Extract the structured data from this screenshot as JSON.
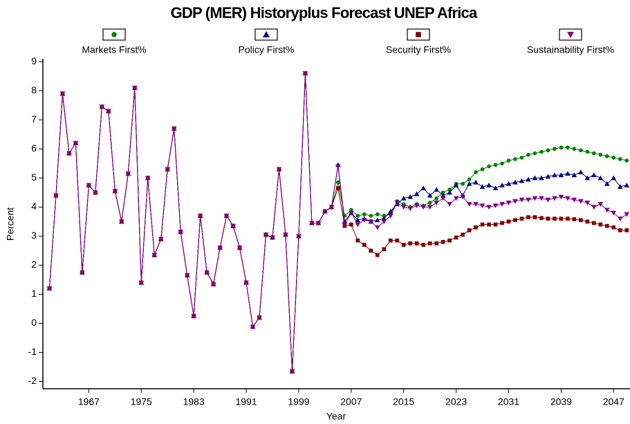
{
  "chart_data": {
    "type": "line",
    "title": "GDP (MER) Historyplus Forecast UNEP Africa",
    "x_label": "Year",
    "y_label": "Percent",
    "x": [
      1961,
      1962,
      1963,
      1964,
      1965,
      1966,
      1967,
      1968,
      1969,
      1970,
      1971,
      1972,
      1973,
      1974,
      1975,
      1976,
      1977,
      1978,
      1979,
      1980,
      1981,
      1982,
      1983,
      1984,
      1985,
      1986,
      1987,
      1988,
      1989,
      1990,
      1991,
      1992,
      1993,
      1994,
      1995,
      1996,
      1997,
      1998,
      1999,
      2000,
      2001,
      2002,
      2003,
      2004,
      2005,
      2006,
      2007,
      2008,
      2009,
      2010,
      2011,
      2012,
      2013,
      2014,
      2015,
      2016,
      2017,
      2018,
      2019,
      2020,
      2021,
      2022,
      2023,
      2024,
      2025,
      2026,
      2027,
      2028,
      2029,
      2030,
      2031,
      2032,
      2033,
      2034,
      2035,
      2036,
      2037,
      2038,
      2039,
      2040,
      2041,
      2042,
      2043,
      2044,
      2045,
      2046,
      2047,
      2048,
      2049
    ],
    "series": [
      {
        "name": "Markets First%",
        "color": "#008000",
        "marker": "circle",
        "values": [
          1.2,
          4.4,
          7.9,
          5.85,
          6.2,
          1.75,
          4.75,
          4.5,
          7.45,
          7.3,
          4.55,
          3.5,
          5.15,
          8.1,
          1.4,
          5.0,
          2.35,
          2.9,
          5.3,
          6.7,
          3.15,
          1.65,
          0.25,
          3.7,
          1.75,
          1.35,
          2.6,
          3.7,
          3.35,
          2.6,
          1.4,
          -0.12,
          0.2,
          3.05,
          2.95,
          5.3,
          3.05,
          -1.65,
          3.0,
          8.6,
          3.45,
          3.45,
          3.85,
          4.0,
          4.85,
          3.7,
          3.9,
          3.7,
          3.75,
          3.7,
          3.75,
          3.7,
          3.75,
          4.2,
          4.1,
          4.0,
          4.1,
          4.05,
          4.15,
          4.3,
          4.5,
          4.6,
          4.8,
          4.8,
          4.95,
          5.2,
          5.3,
          5.4,
          5.45,
          5.5,
          5.6,
          5.65,
          5.7,
          5.8,
          5.85,
          5.9,
          5.95,
          6.0,
          6.05,
          6.05,
          6.0,
          5.95,
          5.9,
          5.85,
          5.8,
          5.75,
          5.7,
          5.65,
          5.6
        ]
      },
      {
        "name": "Policy First%",
        "color": "#000080",
        "marker": "triangle",
        "values": [
          1.2,
          4.4,
          7.9,
          5.85,
          6.2,
          1.75,
          4.75,
          4.5,
          7.45,
          7.3,
          4.55,
          3.5,
          5.15,
          8.1,
          1.4,
          5.0,
          2.35,
          2.9,
          5.3,
          6.7,
          3.15,
          1.65,
          0.25,
          3.7,
          1.75,
          1.35,
          2.6,
          3.7,
          3.35,
          2.6,
          1.4,
          -0.12,
          0.2,
          3.05,
          2.95,
          5.3,
          3.05,
          -1.65,
          3.0,
          8.6,
          3.45,
          3.45,
          3.85,
          4.0,
          5.45,
          3.5,
          3.8,
          3.55,
          3.6,
          3.5,
          3.55,
          3.6,
          3.85,
          4.1,
          4.3,
          4.35,
          4.45,
          4.65,
          4.4,
          4.6,
          4.4,
          4.5,
          4.75,
          4.4,
          4.8,
          4.85,
          4.7,
          4.75,
          4.65,
          4.75,
          4.8,
          4.85,
          4.9,
          4.95,
          5.0,
          5.0,
          5.05,
          5.1,
          5.1,
          5.15,
          5.1,
          5.2,
          5.0,
          5.1,
          5.0,
          4.8,
          5.0,
          4.7,
          4.75
        ]
      },
      {
        "name": "Security First%",
        "color": "#800000",
        "marker": "square",
        "values": [
          1.2,
          4.4,
          7.9,
          5.85,
          6.2,
          1.75,
          4.75,
          4.5,
          7.45,
          7.3,
          4.55,
          3.5,
          5.15,
          8.1,
          1.4,
          5.0,
          2.35,
          2.9,
          5.3,
          6.7,
          3.15,
          1.65,
          0.25,
          3.7,
          1.75,
          1.35,
          2.6,
          3.7,
          3.35,
          2.6,
          1.4,
          -0.12,
          0.2,
          3.05,
          2.95,
          5.3,
          3.05,
          -1.65,
          3.0,
          8.6,
          3.45,
          3.45,
          3.85,
          4.0,
          4.65,
          3.35,
          3.4,
          2.85,
          2.7,
          2.5,
          2.35,
          2.55,
          2.85,
          2.85,
          2.7,
          2.75,
          2.75,
          2.7,
          2.75,
          2.75,
          2.8,
          2.85,
          2.95,
          3.05,
          3.2,
          3.3,
          3.4,
          3.4,
          3.4,
          3.45,
          3.5,
          3.55,
          3.6,
          3.65,
          3.65,
          3.62,
          3.6,
          3.6,
          3.6,
          3.6,
          3.58,
          3.55,
          3.5,
          3.45,
          3.4,
          3.35,
          3.3,
          3.2,
          3.2
        ]
      },
      {
        "name": "Sustainability First%",
        "color": "#800080",
        "marker": "triangle-down",
        "values": [
          1.2,
          4.4,
          7.9,
          5.85,
          6.2,
          1.75,
          4.75,
          4.5,
          7.45,
          7.3,
          4.55,
          3.5,
          5.15,
          8.1,
          1.4,
          5.0,
          2.35,
          2.9,
          5.3,
          6.7,
          3.15,
          1.65,
          0.25,
          3.7,
          1.75,
          1.35,
          2.6,
          3.7,
          3.35,
          2.6,
          1.4,
          -0.12,
          0.2,
          3.05,
          2.95,
          5.3,
          3.05,
          -1.65,
          3.0,
          8.6,
          3.45,
          3.45,
          3.85,
          4.0,
          5.4,
          3.4,
          3.8,
          3.4,
          3.55,
          3.5,
          3.3,
          3.5,
          3.7,
          4.15,
          4.0,
          3.95,
          4.05,
          4.0,
          4.0,
          4.15,
          4.3,
          4.1,
          4.3,
          4.35,
          4.1,
          4.1,
          4.05,
          4.0,
          4.05,
          4.1,
          4.15,
          4.2,
          4.25,
          4.25,
          4.3,
          4.3,
          4.25,
          4.3,
          4.35,
          4.3,
          4.25,
          4.2,
          4.15,
          4.0,
          4.1,
          3.9,
          3.8,
          3.6,
          3.75
        ]
      }
    ],
    "xlim": [
      1960,
      2049.5
    ],
    "xticks": [
      1967,
      1975,
      1983,
      1991,
      1999,
      2007,
      2015,
      2023,
      2031,
      2039,
      2047
    ],
    "ylim": [
      -2.25,
      9.1
    ],
    "yticks": [
      -2,
      -1,
      0,
      1,
      2,
      3,
      4,
      5,
      6,
      7,
      8,
      9
    ],
    "grid": false,
    "legend": "top"
  }
}
